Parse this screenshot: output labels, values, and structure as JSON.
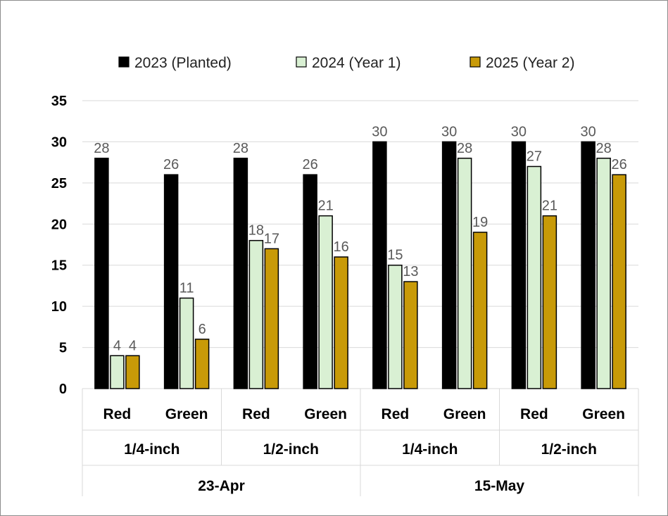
{
  "chart_data": {
    "type": "bar",
    "title": "",
    "xlabel": "",
    "ylabel": "",
    "ylim": [
      0,
      35
    ],
    "yticks": [
      "0",
      "5",
      "10",
      "15",
      "20",
      "25",
      "30",
      "35"
    ],
    "grid": true,
    "legend_position": "top",
    "categories": [
      "Red",
      "Green",
      "Red",
      "Green",
      "Red",
      "Green",
      "Red",
      "Green"
    ],
    "level2": [
      "1/4-inch",
      "1/2-inch",
      "1/4-inch",
      "1/2-inch"
    ],
    "level3": [
      "23-Apr",
      "15-May"
    ],
    "series": [
      {
        "name": "2023 (Planted)",
        "color": "#000000",
        "values": [
          28,
          26,
          28,
          26,
          30,
          30,
          30,
          30
        ]
      },
      {
        "name": "2024 (Year 1)",
        "color": "#d9f0d3",
        "values": [
          4,
          11,
          18,
          21,
          15,
          28,
          27,
          28
        ]
      },
      {
        "name": "2025 (Year 2)",
        "color": "#c89a08",
        "values": [
          4,
          6,
          17,
          16,
          13,
          19,
          21,
          26
        ]
      }
    ],
    "data_labels": [
      [
        "28",
        "26",
        "28",
        "26",
        "30",
        "30",
        "30",
        "30"
      ],
      [
        "4",
        "11",
        "18",
        "21",
        "15",
        "28",
        "27",
        "28"
      ],
      [
        "4",
        "6",
        "17",
        "16",
        "13",
        "19",
        "21",
        "26"
      ]
    ]
  }
}
